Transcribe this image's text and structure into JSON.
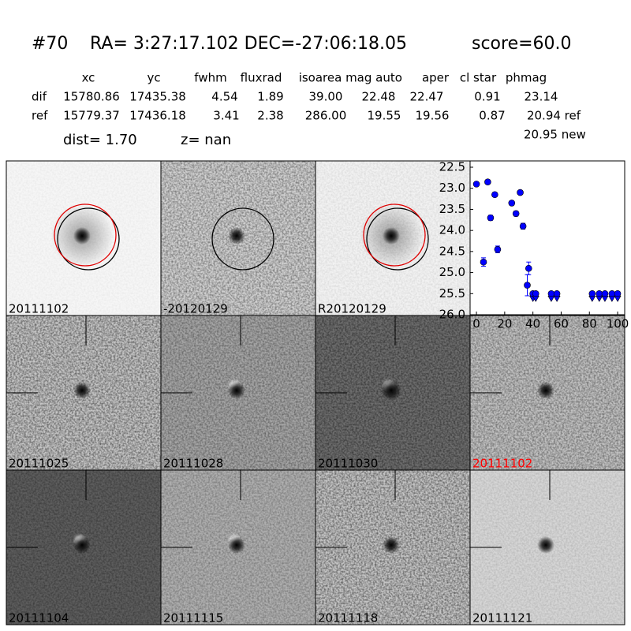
{
  "header": {
    "id": "#70",
    "coords": "RA= 3:27:17.102 DEC=-27:06:18.05",
    "score": "score=60.0"
  },
  "table": {
    "columns": [
      "xc",
      "yc",
      "fwhm",
      "fluxrad",
      "isoarea",
      "mag auto",
      "aper",
      "cl star",
      "phmag"
    ],
    "rows": [
      [
        "dif",
        "15780.86",
        "17435.38",
        "4.54",
        "1.89",
        "39.00",
        "22.48",
        "22.47",
        "0.91",
        "23.14"
      ],
      [
        "ref",
        "15779.37",
        "17436.18",
        "3.41",
        "2.38",
        "286.00",
        "19.55",
        "19.56",
        "0.87",
        "20.94 ref"
      ]
    ],
    "extra": "20.95 new"
  },
  "dist": "dist=  1.70",
  "z": "z=   nan",
  "stamps": [
    "20111102",
    "-20120129",
    "R20120129",
    "20111025",
    "20111028",
    "20111030",
    "20111102",
    "20111104",
    "20111115",
    "20111118",
    "20111121"
  ],
  "chart_data": {
    "type": "scatter",
    "series": [
      {
        "color": "#0000ff",
        "x": [
          0,
          5,
          8,
          10,
          13,
          15,
          25,
          28,
          31,
          33,
          36,
          37
        ],
        "values": [
          22.9,
          24.75,
          22.85,
          23.7,
          23.15,
          24.45,
          23.35,
          23.6,
          23.1,
          23.9,
          25.3,
          24.9
        ],
        "errors": [
          0.05,
          0.1,
          0.04,
          0.06,
          0.05,
          0.08,
          0.05,
          0.06,
          0.04,
          0.07,
          0.25,
          0.15
        ]
      },
      {
        "color": "#0000ff",
        "marker": "upper-limit",
        "x": [
          40,
          42,
          53,
          57,
          82,
          87,
          91,
          96,
          100
        ],
        "values": [
          25.5,
          25.5,
          25.5,
          25.5,
          25.5,
          25.5,
          25.5,
          25.5,
          25.5
        ]
      }
    ],
    "xlim": [
      -4.5,
      105
    ],
    "ylim": [
      26.0,
      22.35
    ],
    "xticks": [
      0,
      20,
      40,
      60,
      80,
      100
    ],
    "yticks": [
      22.5,
      {
        "value": 23,
        "label": "23.0"
      },
      23.5,
      {
        "value": 24,
        "label": "24.0"
      },
      24.5,
      {
        "value": 25,
        "label": "25.0"
      },
      25.5,
      {
        "value": 26,
        "label": "26.0"
      }
    ]
  }
}
